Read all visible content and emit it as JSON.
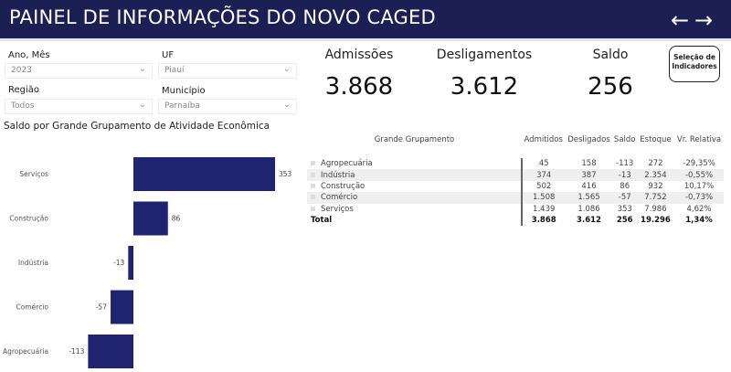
{
  "header": {
    "title": "PAINEL DE INFORMAÇÕES DO NOVO CAGED",
    "back_icon": "arrow-left",
    "forward_icon": "arrow-right"
  },
  "filters": [
    {
      "label": "Ano, Mês",
      "value": "2023"
    },
    {
      "label": "UF",
      "value": "Piauí"
    },
    {
      "label": "Região",
      "value": "Todos"
    },
    {
      "label": "Município",
      "value": "Parnaíba"
    }
  ],
  "kpis": [
    {
      "label": "Admissões",
      "value": "3.868"
    },
    {
      "label": "Desligamentos",
      "value": "3.612"
    },
    {
      "label": "Saldo",
      "value": "256"
    }
  ],
  "indicator_button": {
    "line1": "Seleção de",
    "line2": "Indicadores"
  },
  "chart_data": {
    "type": "bar",
    "orientation": "horizontal",
    "title": "Saldo por Grande Grupamento de Atividade Econômica",
    "categories": [
      "Serviços",
      "Construção",
      "Indústria",
      "Comércio",
      "Agropecuária"
    ],
    "values": [
      353,
      86,
      -13,
      -57,
      -113
    ],
    "labels": [
      "353",
      "86",
      "-13",
      "-57",
      "-113"
    ],
    "color": "#1f2370"
  },
  "table": {
    "headers": [
      "Grande Grupamento",
      "Admitidos",
      "Desligados",
      "Saldo",
      "Estoque",
      "Vr. Relativa"
    ],
    "rows": [
      [
        "Agropecuária",
        "45",
        "158",
        "-113",
        "272",
        "-29,35%"
      ],
      [
        "Indústria",
        "374",
        "387",
        "-13",
        "2.354",
        "-0,55%"
      ],
      [
        "Construção",
        "502",
        "416",
        "86",
        "932",
        "10,17%"
      ],
      [
        "Comércio",
        "1.508",
        "1.565",
        "-57",
        "7.752",
        "-0,73%"
      ],
      [
        "Serviços",
        "1.439",
        "1.086",
        "353",
        "7.986",
        "4,62%"
      ]
    ],
    "total": [
      "Total",
      "3.868",
      "3.612",
      "256",
      "19.296",
      "1,34%"
    ]
  }
}
